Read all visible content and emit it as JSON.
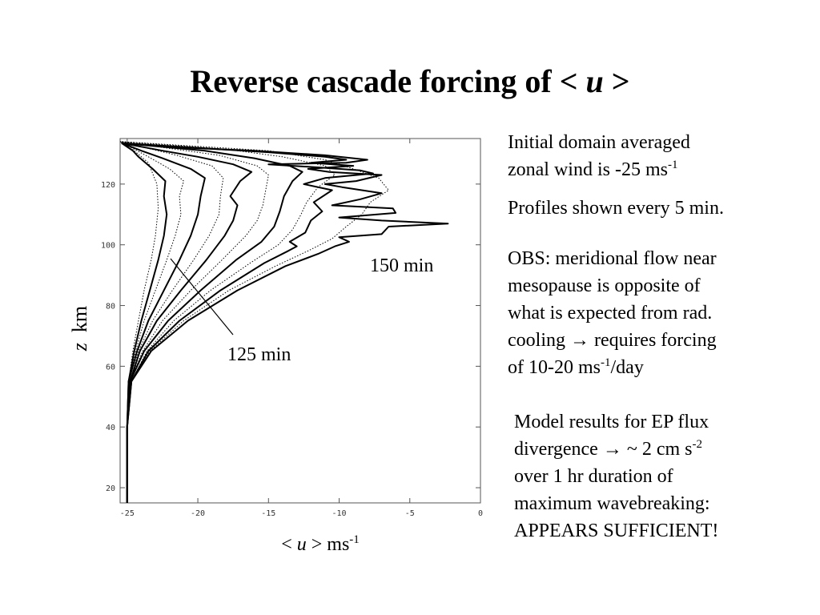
{
  "slide": {
    "title_main": "Reverse cascade forcing of <",
    "title_var": "u",
    "title_end": ">"
  },
  "notes": {
    "n1_a": "Initial domain averaged",
    "n1_b": "zonal wind is -25 ms",
    "n1_sup": "-1",
    "n2": "Profiles shown every 5 min.",
    "n3_a": "OBS: meridional flow near",
    "n3_b": "mesopause is opposite of",
    "n3_c": "what is expected from rad.",
    "n3_d": "cooling",
    "n3_arrow": "→",
    "n3_e": "requires forcing",
    "n3_f": "of 10-20 ms",
    "n3_sup": "-1",
    "n3_g": "/day",
    "n4_a": "Model results for EP flux",
    "n4_b": "divergence",
    "n4_arrow": "→",
    "n4_c": "~ 2 cm s",
    "n4_sup": "-2",
    "n4_d": "over 1 hr duration of",
    "n4_e": "maximum wavebreaking:",
    "n4_f": "APPEARS SUFFICIENT!"
  },
  "axes": {
    "ylabel_var": "z",
    "ylabel_unit": "km",
    "xlabel_pre": "<",
    "xlabel_var": "u",
    "xlabel_post": "> ms",
    "xlabel_sup": "-1"
  },
  "chart_data": {
    "type": "line",
    "xlim": [
      -25.5,
      0
    ],
    "ylim": [
      15,
      135
    ],
    "xticks": [
      -25,
      -20,
      -15,
      -10,
      -5,
      0
    ],
    "yticks": [
      20,
      40,
      60,
      80,
      100,
      120
    ],
    "annotations": [
      {
        "text": "150 min",
        "x": -8,
        "y": 98
      },
      {
        "text": "125 min",
        "x": -18.5,
        "y": 69
      }
    ],
    "series": [
      {
        "style": "dotted",
        "points": [
          [
            -25,
            15
          ],
          [
            -25,
            40
          ],
          [
            -24.9,
            55
          ],
          [
            -24.6,
            65
          ],
          [
            -24.2,
            75
          ],
          [
            -23.8,
            85
          ],
          [
            -23.3,
            95
          ],
          [
            -23,
            103
          ],
          [
            -22.8,
            112
          ],
          [
            -22.9,
            120
          ],
          [
            -23.5,
            127
          ],
          [
            -24.5,
            131
          ],
          [
            -25.5,
            134
          ]
        ]
      },
      {
        "style": "solid",
        "points": [
          [
            -25,
            15
          ],
          [
            -25,
            40
          ],
          [
            -24.9,
            55
          ],
          [
            -24.5,
            65
          ],
          [
            -24,
            75
          ],
          [
            -23.4,
            85
          ],
          [
            -22.8,
            95
          ],
          [
            -22.4,
            103
          ],
          [
            -22.2,
            110
          ],
          [
            -22.4,
            116
          ],
          [
            -22.3,
            121
          ],
          [
            -23.2,
            125
          ],
          [
            -24.2,
            129
          ],
          [
            -24.6,
            131
          ],
          [
            -25.4,
            133.5
          ]
        ]
      },
      {
        "style": "dotted",
        "points": [
          [
            -25,
            15
          ],
          [
            -25,
            40
          ],
          [
            -24.9,
            55
          ],
          [
            -24.4,
            65
          ],
          [
            -23.8,
            75
          ],
          [
            -23,
            85
          ],
          [
            -22.2,
            95
          ],
          [
            -21.6,
            103
          ],
          [
            -21.2,
            110
          ],
          [
            -21.3,
            116
          ],
          [
            -21,
            121
          ],
          [
            -22,
            125
          ],
          [
            -23.5,
            129
          ],
          [
            -25.5,
            134
          ]
        ]
      },
      {
        "style": "solid",
        "points": [
          [
            -25,
            15
          ],
          [
            -25,
            40
          ],
          [
            -24.9,
            55
          ],
          [
            -24.3,
            65
          ],
          [
            -23.5,
            75
          ],
          [
            -22.4,
            85
          ],
          [
            -21.3,
            95
          ],
          [
            -20.5,
            103
          ],
          [
            -20,
            110
          ],
          [
            -19.8,
            116
          ],
          [
            -19.5,
            122
          ],
          [
            -20.5,
            125
          ],
          [
            -22.5,
            128.5
          ],
          [
            -24,
            131
          ],
          [
            -25.4,
            133.5
          ]
        ]
      },
      {
        "style": "dotted",
        "points": [
          [
            -25,
            15
          ],
          [
            -25,
            40
          ],
          [
            -24.8,
            55
          ],
          [
            -24.2,
            65
          ],
          [
            -23.2,
            75
          ],
          [
            -21.8,
            85
          ],
          [
            -20.3,
            95
          ],
          [
            -19.2,
            103
          ],
          [
            -18.5,
            110
          ],
          [
            -18.4,
            116
          ],
          [
            -18.2,
            122
          ],
          [
            -19,
            126
          ],
          [
            -21.5,
            129.5
          ],
          [
            -25.5,
            134
          ]
        ]
      },
      {
        "style": "solid",
        "points": [
          [
            -25,
            15
          ],
          [
            -25,
            40
          ],
          [
            -24.8,
            55
          ],
          [
            -24.1,
            65
          ],
          [
            -22.9,
            75
          ],
          [
            -21.2,
            85
          ],
          [
            -19.4,
            95
          ],
          [
            -18.1,
            103
          ],
          [
            -17.5,
            108
          ],
          [
            -17.2,
            113
          ],
          [
            -17.7,
            116
          ],
          [
            -17,
            121
          ],
          [
            -16.2,
            124
          ],
          [
            -17.5,
            126.5
          ],
          [
            -20,
            129
          ],
          [
            -22.5,
            131
          ],
          [
            -25.4,
            133.5
          ]
        ]
      },
      {
        "style": "dotted",
        "points": [
          [
            -25,
            15
          ],
          [
            -25,
            40
          ],
          [
            -24.8,
            55
          ],
          [
            -23.9,
            65
          ],
          [
            -22.5,
            75
          ],
          [
            -20.5,
            85
          ],
          [
            -18.3,
            95
          ],
          [
            -16.6,
            103
          ],
          [
            -15.8,
            108
          ],
          [
            -15.4,
            113
          ],
          [
            -15.2,
            118
          ],
          [
            -15,
            123
          ],
          [
            -15.8,
            126
          ],
          [
            -18.5,
            129.5
          ],
          [
            -25.5,
            134
          ]
        ]
      },
      {
        "style": "solid",
        "points": [
          [
            -25,
            15
          ],
          [
            -25,
            40
          ],
          [
            -24.8,
            55
          ],
          [
            -23.8,
            65
          ],
          [
            -22.1,
            75
          ],
          [
            -19.8,
            85
          ],
          [
            -17.3,
            95
          ],
          [
            -15.5,
            101
          ],
          [
            -14.6,
            106
          ],
          [
            -14.2,
            111
          ],
          [
            -13.9,
            116
          ],
          [
            -13.3,
            121
          ],
          [
            -12.6,
            124
          ],
          [
            -13.5,
            126
          ],
          [
            -16,
            128.5
          ],
          [
            -19.5,
            131
          ],
          [
            -25.4,
            133.5
          ]
        ]
      },
      {
        "style": "dotted",
        "points": [
          [
            -25,
            15
          ],
          [
            -25,
            40
          ],
          [
            -24.7,
            55
          ],
          [
            -23.6,
            65
          ],
          [
            -21.7,
            75
          ],
          [
            -19.1,
            85
          ],
          [
            -16.3,
            94
          ],
          [
            -14.3,
            100
          ],
          [
            -13.3,
            105
          ],
          [
            -12.7,
            110
          ],
          [
            -12.3,
            114
          ],
          [
            -11.5,
            119
          ],
          [
            -10.3,
            123
          ],
          [
            -11,
            126
          ],
          [
            -14,
            129
          ],
          [
            -18,
            131.5
          ],
          [
            -25.5,
            134
          ]
        ]
      },
      {
        "style": "solid",
        "points": [
          [
            -25,
            15
          ],
          [
            -25,
            40
          ],
          [
            -24.7,
            55
          ],
          [
            -23.5,
            65
          ],
          [
            -21.3,
            75
          ],
          [
            -18.4,
            85
          ],
          [
            -15.3,
            94
          ],
          [
            -13.6,
            98
          ],
          [
            -13,
            99.5
          ],
          [
            -13.5,
            101
          ],
          [
            -12.4,
            104
          ],
          [
            -12,
            108
          ],
          [
            -11.2,
            111
          ],
          [
            -11.8,
            114
          ],
          [
            -10.5,
            118
          ],
          [
            -12.5,
            120
          ],
          [
            -11,
            122
          ],
          [
            -7.6,
            123.5
          ],
          [
            -8.5,
            124.5
          ],
          [
            -11.5,
            125.5
          ],
          [
            -15,
            126.5
          ],
          [
            -9.5,
            127
          ],
          [
            -8,
            128
          ],
          [
            -11,
            129.5
          ],
          [
            -16,
            131
          ],
          [
            -21,
            132
          ],
          [
            -25.4,
            133.5
          ]
        ]
      },
      {
        "style": "dotted",
        "points": [
          [
            -25,
            15
          ],
          [
            -25,
            40
          ],
          [
            -24.7,
            55
          ],
          [
            -23.4,
            65
          ],
          [
            -21,
            75
          ],
          [
            -17.8,
            85
          ],
          [
            -14.5,
            93
          ],
          [
            -12.2,
            98
          ],
          [
            -10.5,
            102
          ],
          [
            -9.5,
            106
          ],
          [
            -8.4,
            110
          ],
          [
            -7.8,
            114
          ],
          [
            -6.5,
            118
          ],
          [
            -7.2,
            122
          ],
          [
            -9,
            125
          ],
          [
            -11,
            128
          ],
          [
            -15,
            131
          ],
          [
            -25.5,
            134
          ]
        ]
      },
      {
        "style": "solid",
        "points": [
          [
            -25,
            15
          ],
          [
            -25,
            40
          ],
          [
            -24.7,
            55
          ],
          [
            -23.3,
            65
          ],
          [
            -20.7,
            75
          ],
          [
            -17.2,
            85
          ],
          [
            -13.8,
            93
          ],
          [
            -11.5,
            97
          ],
          [
            -10.3,
            99.5
          ],
          [
            -9.3,
            101
          ],
          [
            -10,
            102.5
          ],
          [
            -7,
            103.5
          ],
          [
            -6.5,
            106
          ],
          [
            -2.3,
            107
          ],
          [
            -7,
            108
          ],
          [
            -10,
            109
          ],
          [
            -6,
            110.5
          ],
          [
            -6.2,
            112
          ],
          [
            -10.5,
            113
          ],
          [
            -8.5,
            115
          ],
          [
            -7,
            117
          ],
          [
            -9.8,
            119
          ],
          [
            -11,
            120
          ],
          [
            -8.8,
            121
          ],
          [
            -7,
            123
          ],
          [
            -10.7,
            124
          ],
          [
            -12.2,
            125
          ],
          [
            -9,
            126
          ],
          [
            -12,
            127
          ],
          [
            -9.5,
            128
          ],
          [
            -11,
            129
          ],
          [
            -15,
            130.5
          ],
          [
            -22,
            132.5
          ],
          [
            -25.4,
            133.5
          ]
        ]
      }
    ]
  }
}
